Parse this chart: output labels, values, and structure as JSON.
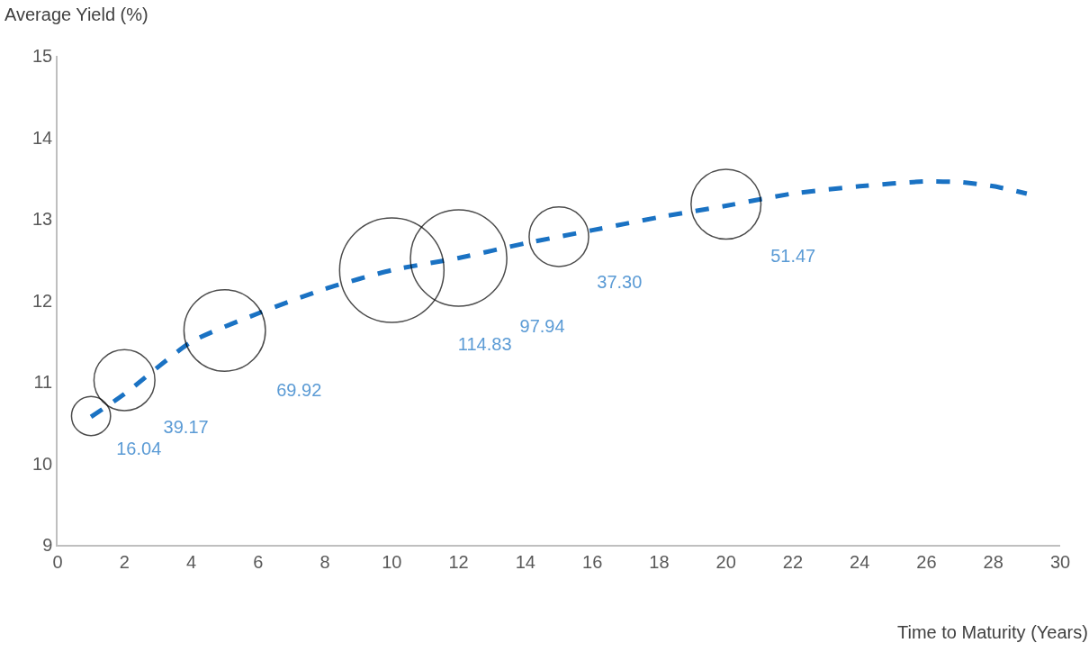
{
  "chart_data": {
    "type": "bubble",
    "xlabel": "Time to Maturity (Years)",
    "ylabel": "Average Yield (%)",
    "xlim": [
      0,
      30
    ],
    "xticks": [
      0,
      2,
      4,
      6,
      8,
      10,
      12,
      14,
      16,
      18,
      20,
      22,
      24,
      26,
      28,
      30
    ],
    "ylim": [
      9,
      15
    ],
    "yticks": [
      9,
      10,
      11,
      12,
      13,
      14,
      15
    ],
    "grid": false,
    "series": [
      {
        "color": "#000000",
        "x": [
          1,
          2,
          5,
          10,
          12,
          15,
          20
        ],
        "values": [
          10.58,
          11.02,
          11.63,
          12.37,
          12.52,
          12.78,
          13.18
        ],
        "sizes": [
          16.04,
          39.17,
          69.92,
          114.83,
          97.94,
          37.3,
          51.47
        ],
        "value_labels": [
          "16.04",
          "39.17",
          "69.92",
          "114.83",
          "97.94",
          "37.30",
          "51.47"
        ]
      },
      {
        "type": "line",
        "color": "#1a72c3",
        "line_style": "dashed",
        "marker": "none",
        "x": [
          1,
          2,
          4,
          6,
          8,
          10,
          12,
          14,
          16,
          18,
          20,
          22,
          24,
          26,
          27,
          28,
          29
        ],
        "values": [
          10.57,
          10.85,
          11.49,
          11.84,
          12.14,
          12.37,
          12.52,
          12.7,
          12.86,
          13.02,
          13.16,
          13.31,
          13.4,
          13.46,
          13.45,
          13.4,
          13.31
        ]
      }
    ]
  }
}
